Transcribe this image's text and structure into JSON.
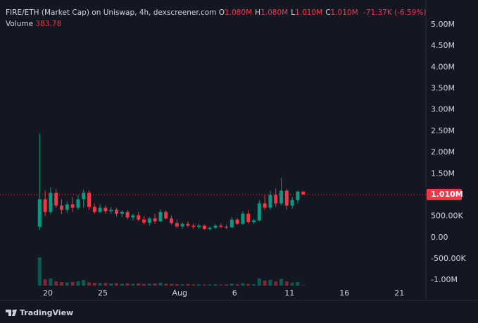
{
  "chart_data": {
    "type": "candlestick",
    "title": "FIRE/ETH (Market Cap) on Uniswap, 4h, dexscreener.com",
    "ohlc_legend": [
      {
        "key": "O",
        "text": "1.080M"
      },
      {
        "key": "H",
        "text": "1.080M"
      },
      {
        "key": "L",
        "text": "1.010M"
      },
      {
        "key": "C",
        "text": "1.010M"
      }
    ],
    "change": "-71.37K (-6.59%)",
    "volume_label": "Volume",
    "brand": "TradingView",
    "up_color": "#089981",
    "down_color": "#f23645",
    "x": [
      19.25,
      19.75,
      20.25,
      20.75,
      21.25,
      21.75,
      22.25,
      22.75,
      23.25,
      23.75,
      24.25,
      24.75,
      25.25,
      25.75,
      26.25,
      26.75,
      27.25,
      27.75,
      28.25,
      28.75,
      29.25,
      29.75,
      30.25,
      30.75,
      31.25,
      31.75,
      32.25,
      32.75,
      33.25,
      33.75,
      34.25,
      34.75,
      35.25,
      35.75,
      36.25,
      36.75,
      37.25,
      37.75,
      38.25,
      38.75,
      39.25,
      39.75,
      40.25,
      40.75,
      41.25,
      41.75,
      42.25,
      42.75,
      43.25
    ],
    "open": [
      250000,
      900000,
      600000,
      1050000,
      750000,
      650000,
      780000,
      700000,
      900000,
      1050000,
      720000,
      600000,
      700000,
      620000,
      650000,
      560000,
      600000,
      470000,
      520000,
      420000,
      350000,
      450000,
      380000,
      600000,
      450000,
      340000,
      260000,
      320000,
      280000,
      250000,
      280000,
      200000,
      230000,
      280000,
      250000,
      240000,
      420000,
      320000,
      560000,
      360000,
      400000,
      800000,
      700000,
      1000000,
      800000,
      1100000,
      750000,
      880000,
      1080000
    ],
    "high": [
      2440000,
      1100000,
      1180000,
      1150000,
      900000,
      850000,
      950000,
      1000000,
      1120000,
      1100000,
      800000,
      780000,
      760000,
      720000,
      700000,
      640000,
      650000,
      560000,
      600000,
      500000,
      480000,
      560000,
      660000,
      640000,
      520000,
      420000,
      360000,
      380000,
      330000,
      320000,
      300000,
      260000,
      320000,
      330000,
      300000,
      480000,
      460000,
      620000,
      640000,
      440000,
      880000,
      1000000,
      1100000,
      1150000,
      1400000,
      1150000,
      950000,
      1100000,
      1080000
    ],
    "low": [
      180000,
      500000,
      550000,
      700000,
      550000,
      580000,
      600000,
      650000,
      700000,
      650000,
      560000,
      580000,
      560000,
      560000,
      500000,
      480000,
      420000,
      400000,
      380000,
      300000,
      280000,
      320000,
      360000,
      420000,
      300000,
      220000,
      200000,
      240000,
      200000,
      210000,
      180000,
      170000,
      200000,
      220000,
      200000,
      220000,
      300000,
      300000,
      330000,
      320000,
      380000,
      650000,
      650000,
      720000,
      750000,
      650000,
      680000,
      800000,
      1010000
    ],
    "close": [
      900000,
      600000,
      1050000,
      750000,
      650000,
      780000,
      700000,
      900000,
      1050000,
      720000,
      600000,
      700000,
      620000,
      650000,
      560000,
      600000,
      470000,
      520000,
      420000,
      350000,
      450000,
      380000,
      600000,
      450000,
      340000,
      260000,
      320000,
      280000,
      250000,
      280000,
      200000,
      230000,
      280000,
      250000,
      240000,
      420000,
      320000,
      560000,
      360000,
      400000,
      800000,
      700000,
      1000000,
      800000,
      1100000,
      750000,
      880000,
      1080000,
      1010000
    ],
    "volume": [
      20000,
      4500,
      5200,
      3000,
      2500,
      2200,
      2600,
      3100,
      4000,
      2300,
      2000,
      1800,
      1900,
      1500,
      1700,
      1400,
      1600,
      1300,
      1500,
      1200,
      1300,
      1500,
      2100,
      1400,
      1200,
      1000,
      900,
      1100,
      800,
      900,
      700,
      800,
      900,
      700,
      800,
      1500,
      1000,
      1700,
      1200,
      1000,
      5200,
      3600,
      4200,
      2900,
      4800,
      3000,
      2200,
      2600,
      383.78
    ],
    "xlim": [
      15.64,
      54.42
    ],
    "xticks": [
      20,
      25,
      {
        "value": 32,
        "label": "Aug"
      },
      {
        "value": 37,
        "label": "6"
      },
      {
        "value": 42,
        "label": "11"
      },
      {
        "value": 47,
        "label": "16"
      },
      {
        "value": 52,
        "label": "21"
      }
    ],
    "ylim": [
      -1130000,
      5580000
    ],
    "yticks": [
      {
        "value": 5000000,
        "label": "5.00M"
      },
      {
        "value": 4500000,
        "label": "4.50M"
      },
      {
        "value": 4000000,
        "label": "4.00M"
      },
      {
        "value": 3500000,
        "label": "3.50M"
      },
      {
        "value": 3000000,
        "label": "3.00M"
      },
      {
        "value": 2500000,
        "label": "2.50M"
      },
      {
        "value": 2000000,
        "label": "2.00M"
      },
      {
        "value": 1500000,
        "label": "1.50M"
      },
      {
        "value": 500000,
        "label": "500.00K"
      },
      {
        "value": 0,
        "label": "0.00"
      },
      {
        "value": -500000,
        "label": "-500.00K"
      },
      {
        "value": -1000000,
        "label": "-1.00M"
      }
    ],
    "last_price": {
      "value": 1010000,
      "label": "1.010M"
    }
  }
}
